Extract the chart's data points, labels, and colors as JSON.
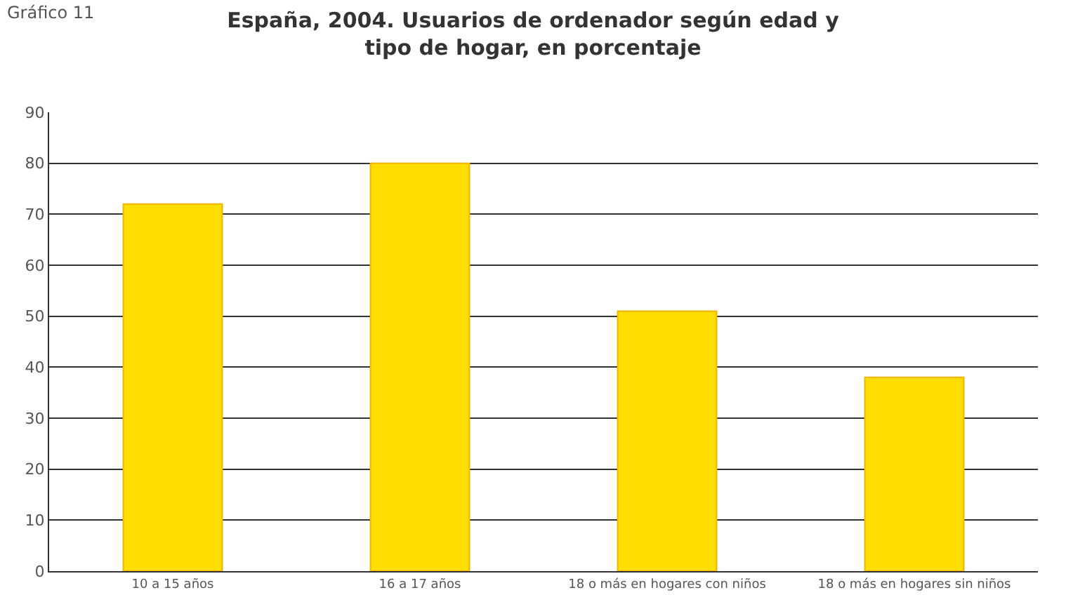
{
  "chart_data": {
    "type": "bar",
    "title": "España, 2004. Usuarios de ordenador según edad y tipo de hogar, en porcentaje",
    "annotations": [
      "Gráfico 11"
    ],
    "categories": [
      "10 a 15 años",
      "16 a 17 años",
      "18 o más en hogares con niños",
      "18 o más en hogares sin niños"
    ],
    "values": [
      72,
      80,
      51,
      38
    ],
    "color": "#ffdd00",
    "ylim": [
      0,
      90
    ],
    "yticks": [
      0,
      10,
      20,
      30,
      40,
      50,
      60,
      70,
      80,
      90
    ],
    "grid": "y"
  }
}
